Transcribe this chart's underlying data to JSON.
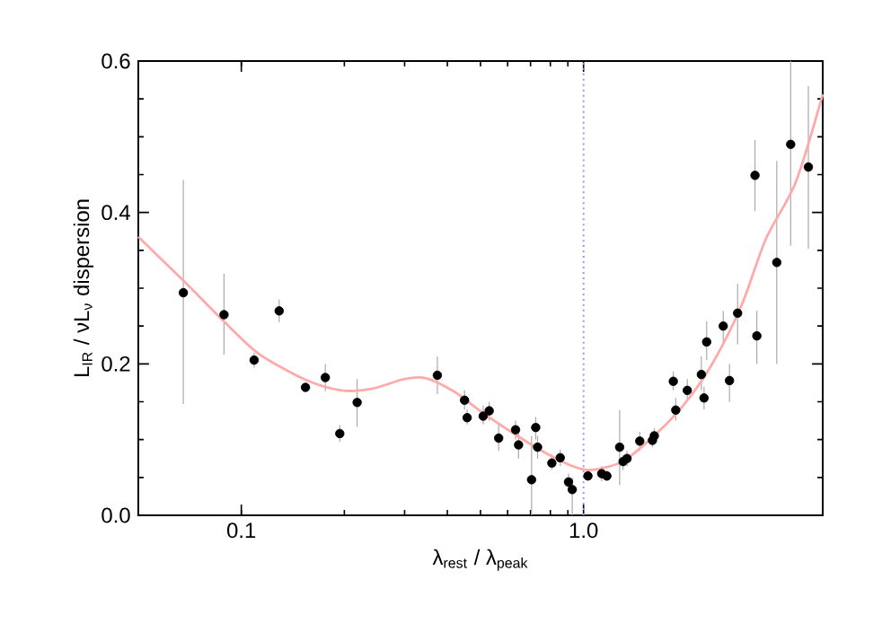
{
  "chart_data": {
    "type": "scatter",
    "xlabel": "λ$_{rest}$ / λ$_{peak}$",
    "ylabel": "L$_{IR}$ / νL$_{ν}$ dispersion",
    "log": "x",
    "xlim": [
      0.05,
      5
    ],
    "ylim": [
      0,
      0.6
    ],
    "xticks": [
      {
        "value": 0.1,
        "label": "0.1"
      },
      {
        "value": 1,
        "label": "1.0"
      }
    ],
    "yticks": [
      {
        "value": 0,
        "label": "0.0"
      },
      {
        "value": 0.2,
        "label": "0.2"
      },
      {
        "value": 0.4,
        "label": "0.4"
      },
      {
        "value": 0.6,
        "label": "0.6"
      }
    ],
    "grid": false,
    "marker": "circle",
    "ref_lines": [
      {
        "axis": "x",
        "value": 1,
        "color": "#9999ee",
        "line_style": "dotted"
      }
    ],
    "series": [
      {
        "color": "#000000",
        "x": [
          0.0677,
          0.089,
          0.109,
          0.129,
          0.154,
          0.176,
          0.194,
          0.218
        ],
        "values": [
          0.294,
          0.265,
          0.205,
          0.27,
          0.169,
          0.182,
          0.108,
          0.149
        ],
        "errors": [
          [
            0.147,
            0.443
          ],
          [
            0.212,
            0.319
          ],
          [
            0.195,
            0.215
          ],
          [
            0.255,
            0.285
          ],
          null,
          [
            0.164,
            0.2
          ],
          [
            0.097,
            0.119
          ],
          [
            0.117,
            0.18
          ]
        ]
      },
      {
        "color": "#000000",
        "x": [
          0.374,
          0.449,
          0.457,
          0.509,
          0.53,
          0.565,
          0.633,
          0.646,
          0.705,
          0.725,
          0.734,
          0.808,
          0.855,
          0.904,
          0.927,
          1.03,
          1.13,
          1.17,
          1.275,
          1.305,
          1.34,
          1.46,
          1.59,
          1.61,
          1.83,
          1.86,
          2.01,
          2.21,
          2.25,
          2.29,
          2.56,
          2.67,
          2.82,
          3.17,
          3.21,
          3.67,
          4.03,
          4.54
        ],
        "values": [
          0.185,
          0.152,
          0.129,
          0.131,
          0.138,
          0.102,
          0.113,
          0.093,
          0.047,
          0.116,
          0.09,
          0.069,
          0.076,
          0.044,
          0.034,
          0.052,
          0.055,
          0.052,
          0.09,
          0.071,
          0.075,
          0.098,
          0.099,
          0.105,
          0.177,
          0.139,
          0.165,
          0.186,
          0.155,
          0.229,
          0.25,
          0.178,
          0.267,
          0.449,
          0.237,
          0.334,
          0.49,
          0.46
        ],
        "errors": [
          [
            0.16,
            0.21
          ],
          [
            0.14,
            0.165
          ],
          [
            0.12,
            0.14
          ],
          [
            0.12,
            0.145
          ],
          [
            0.125,
            0.15
          ],
          [
            0.085,
            0.12
          ],
          [
            0.1,
            0.125
          ],
          [
            0.075,
            0.11
          ],
          [
            0,
            0.105
          ],
          [
            0.1,
            0.13
          ],
          [
            0.075,
            0.105
          ],
          [
            0.06,
            0.08
          ],
          [
            0.065,
            0.087
          ],
          [
            0.035,
            0.055
          ],
          [
            0,
            0.05
          ],
          null,
          [
            0.045,
            0.065
          ],
          [
            0.045,
            0.06
          ],
          [
            0.04,
            0.139
          ],
          [
            0.06,
            0.08
          ],
          [
            0.065,
            0.085
          ],
          [
            0.085,
            0.11
          ],
          [
            0.09,
            0.11
          ],
          [
            0.095,
            0.115
          ],
          [
            0.165,
            0.19
          ],
          [
            0.125,
            0.155
          ],
          [
            0.15,
            0.18
          ],
          [
            0.165,
            0.21
          ],
          [
            0.14,
            0.17
          ],
          [
            0.205,
            0.256
          ],
          [
            0.225,
            0.27
          ],
          [
            0.15,
            0.2
          ],
          [
            0.226,
            0.306
          ],
          [
            0.402,
            0.496
          ],
          [
            0.2,
            0.27
          ],
          [
            0.2,
            0.468
          ],
          [
            0.356,
            0.6
          ],
          [
            0.352,
            0.567
          ]
        ]
      },
      {
        "type": "line",
        "marker": "none",
        "color": "#ffaaaa",
        "x": [
          0.05,
          0.0677,
          0.089,
          0.112,
          0.154,
          0.196,
          0.24,
          0.3,
          0.347,
          0.42,
          0.509,
          0.63,
          0.77,
          0.94,
          1.06,
          1.3,
          1.59,
          1.94,
          2.37,
          2.9,
          3.41,
          4.17,
          5.0
        ],
        "values": [
          0.368,
          0.31,
          0.256,
          0.214,
          0.179,
          0.165,
          0.167,
          0.18,
          0.181,
          0.163,
          0.135,
          0.107,
          0.083,
          0.064,
          0.06,
          0.071,
          0.103,
          0.143,
          0.199,
          0.278,
          0.365,
          0.44,
          0.556
        ]
      }
    ]
  }
}
